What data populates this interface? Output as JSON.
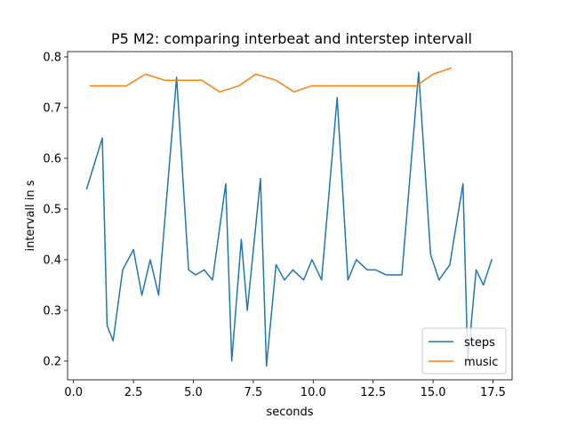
{
  "chart_data": {
    "type": "line",
    "title": "P5 M2: comparing interbeat and interstep intervall",
    "xlabel": "seconds",
    "ylabel": "intervall in s",
    "xlim": [
      -0.25,
      18.3
    ],
    "ylim": [
      0.163,
      0.8105
    ],
    "xticks": [
      0.0,
      2.5,
      5.0,
      7.5,
      10.0,
      12.5,
      15.0,
      17.5
    ],
    "xtick_labels": [
      "0.0",
      "2.5",
      "5.0",
      "7.5",
      "10.0",
      "12.5",
      "15.0",
      "17.5"
    ],
    "yticks": [
      0.2,
      0.3,
      0.4,
      0.5,
      0.6,
      0.7,
      0.8
    ],
    "ytick_labels": [
      "0.2",
      "0.3",
      "0.4",
      "0.5",
      "0.6",
      "0.7",
      "0.8"
    ],
    "grid": false,
    "legend_position": "lower-right",
    "series": [
      {
        "name": "steps",
        "color": "#1f77b4",
        "x": [
          0.55,
          1.2,
          1.4,
          1.65,
          2.05,
          2.5,
          2.85,
          3.2,
          3.55,
          4.3,
          4.8,
          5.1,
          5.45,
          5.8,
          6.35,
          6.6,
          7.0,
          7.25,
          7.8,
          8.05,
          8.45,
          8.8,
          9.15,
          9.6,
          9.95,
          10.35,
          11.0,
          11.45,
          11.8,
          12.25,
          12.6,
          13.05,
          13.7,
          14.4,
          14.9,
          15.25,
          15.7,
          16.25,
          16.45,
          16.8,
          17.1,
          17.45
        ],
        "y": [
          0.54,
          0.64,
          0.27,
          0.24,
          0.38,
          0.42,
          0.33,
          0.4,
          0.33,
          0.76,
          0.38,
          0.37,
          0.38,
          0.36,
          0.55,
          0.2,
          0.44,
          0.3,
          0.56,
          0.19,
          0.39,
          0.36,
          0.38,
          0.36,
          0.4,
          0.36,
          0.72,
          0.36,
          0.4,
          0.38,
          0.38,
          0.37,
          0.37,
          0.77,
          0.41,
          0.36,
          0.39,
          0.55,
          0.2,
          0.38,
          0.35,
          0.4
        ]
      },
      {
        "name": "music",
        "color": "#ff7f0e",
        "x": [
          0.7,
          1.45,
          2.2,
          3.0,
          3.8,
          4.6,
          5.35,
          6.1,
          6.9,
          7.6,
          8.45,
          9.2,
          9.95,
          10.7,
          11.5,
          12.3,
          13.05,
          13.8,
          14.3,
          15.0,
          15.75
        ],
        "y": [
          0.743,
          0.743,
          0.743,
          0.766,
          0.754,
          0.754,
          0.754,
          0.731,
          0.743,
          0.766,
          0.754,
          0.731,
          0.743,
          0.743,
          0.743,
          0.743,
          0.743,
          0.743,
          0.743,
          0.766,
          0.778
        ]
      }
    ]
  }
}
